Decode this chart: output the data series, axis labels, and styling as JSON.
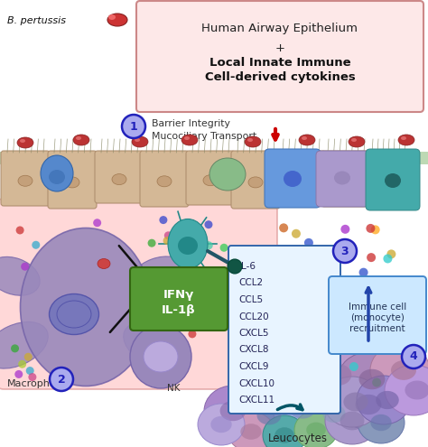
{
  "title_box_bg": "#fde8e8",
  "title_box_border": "#cc8888",
  "b_pertussis_text": "B. pertussis",
  "step1_text": "Barrier Integrity\nMucociliary Transport",
  "macrophage_label": "Macrophage",
  "nk_label": "NK",
  "ifn_box_text": "IFNγ\nIL-1β",
  "cytokine_list": [
    "IL-6",
    "CCL2",
    "CCL5",
    "CCL20",
    "CXCL5",
    "CXCL8",
    "CXCL9",
    "CXCL10",
    "CXCL11"
  ],
  "leucocytes_label": "Leucocytes",
  "immune_cell_text": "Immune cell\n(monocyte)\nrecruitment",
  "circle_color": "#2222bb",
  "circle_bg": "#aaaaee",
  "pink_bg": "#ffcccc",
  "epithelium_color": "#d4b896",
  "green_layer": "#88bb77",
  "ifn_box_bg": "#559933",
  "cytokine_box_bg": "#e8f4ff",
  "cytokine_box_border": "#3366aa",
  "immune_cell_box_bg": "#cce8ff",
  "immune_cell_box_border": "#4488cc",
  "red_arrow_color": "#cc0000",
  "dark_teal_arrow": "#005566",
  "blue_arrow": "#2244aa",
  "background": "#ffffff",
  "macrophage_body_color": "#9988bb",
  "nk_cell_color": "#8877aa",
  "teal_cell_color": "#44aaaa"
}
